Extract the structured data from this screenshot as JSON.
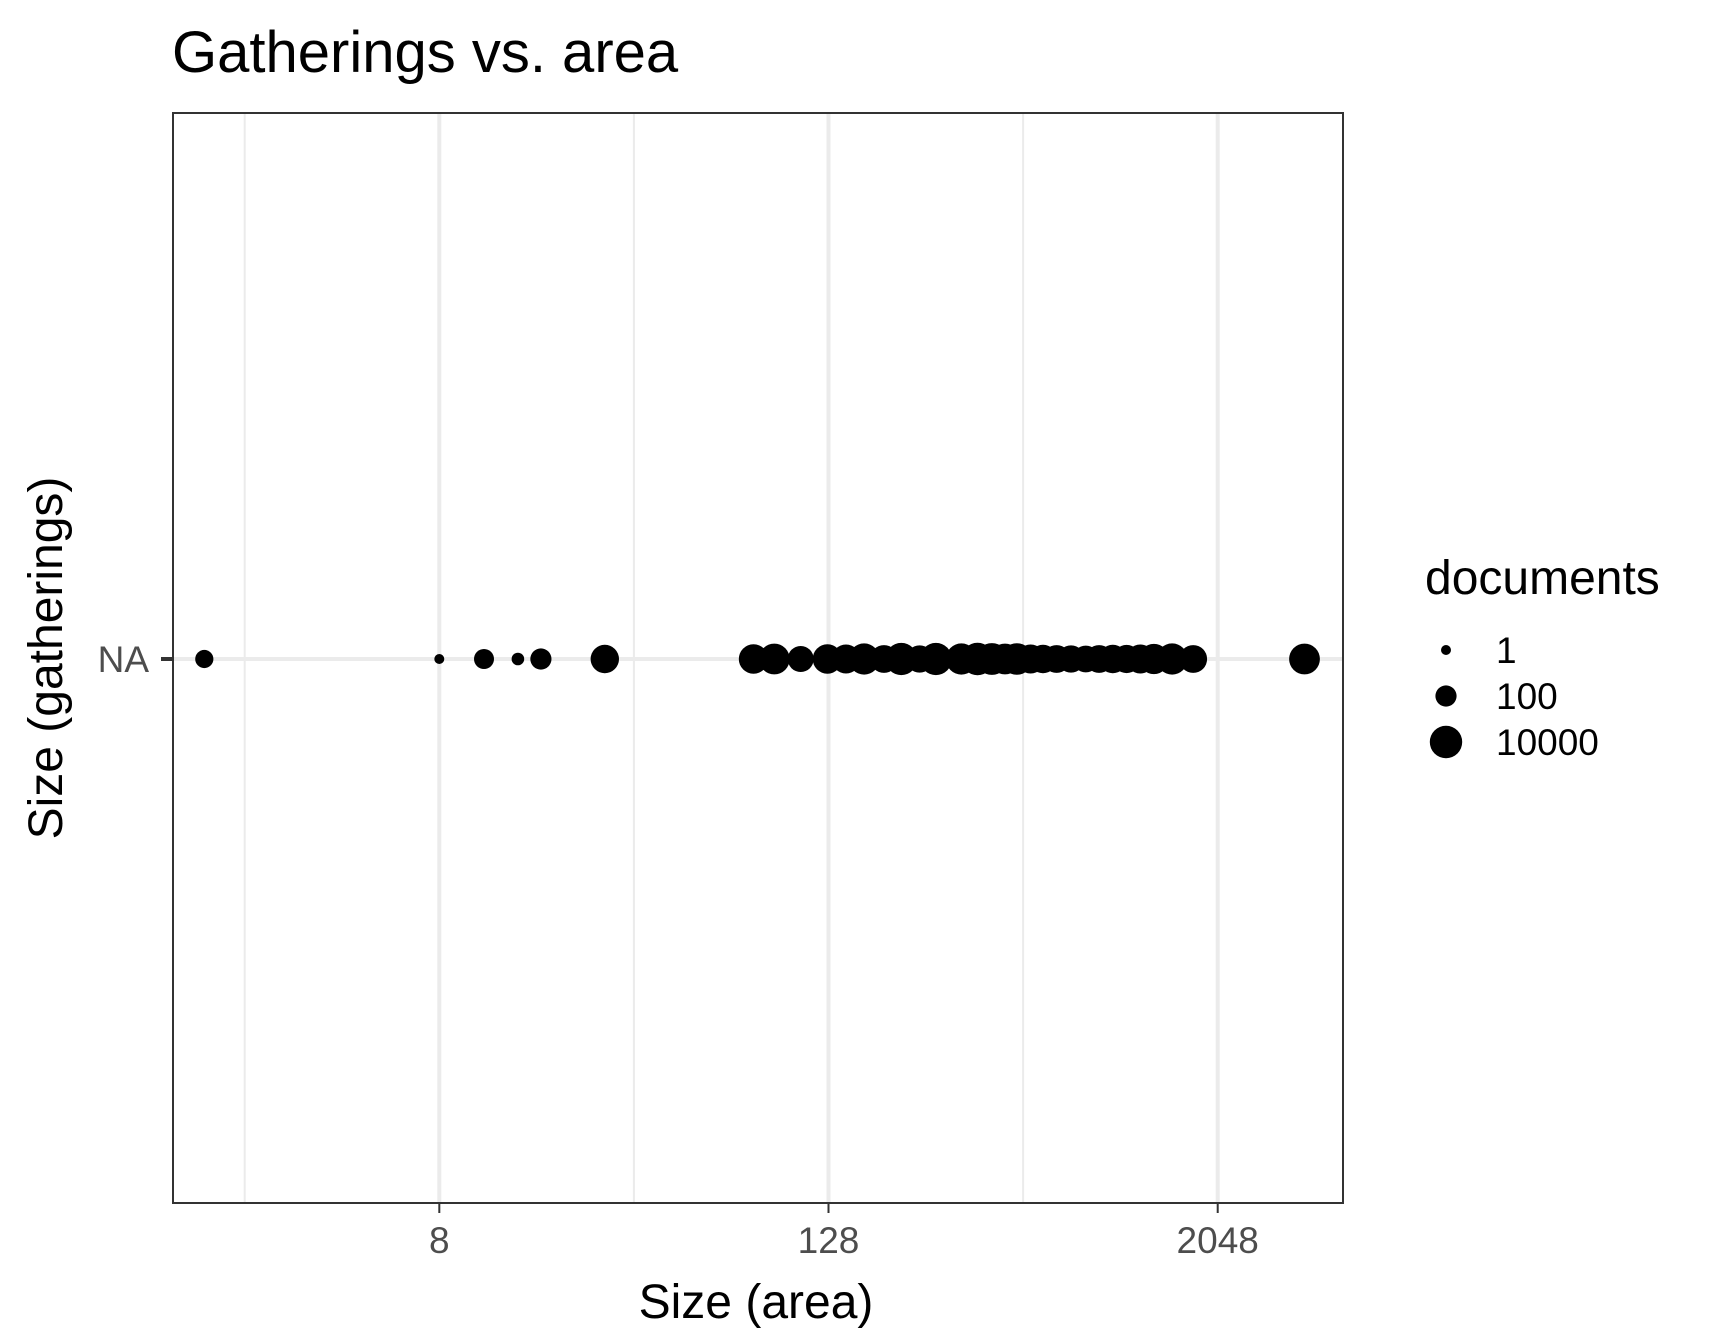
{
  "chart_data": {
    "type": "scatter",
    "title": "Gatherings vs. area",
    "xlabel": "Size (area)",
    "ylabel": "Size (gatherings)",
    "x_scale": "log2",
    "xlim": [
      1.2,
      5000
    ],
    "x_ticks": [
      {
        "value": 8,
        "label": "8"
      },
      {
        "value": 128,
        "label": "128"
      },
      {
        "value": 2048,
        "label": "2048"
      }
    ],
    "y_categories": [
      "NA"
    ],
    "grid": true,
    "legend": {
      "title": "documents",
      "placement": "right",
      "entries": [
        {
          "label": "1",
          "value": 1
        },
        {
          "label": "100",
          "value": 100
        },
        {
          "label": "10000",
          "value": 10000
        }
      ]
    },
    "points": [
      {
        "x": 1.5,
        "y": "NA",
        "documents": 30
      },
      {
        "x": 8,
        "y": "NA",
        "documents": 1
      },
      {
        "x": 11,
        "y": "NA",
        "documents": 60
      },
      {
        "x": 14,
        "y": "NA",
        "documents": 3
      },
      {
        "x": 16.5,
        "y": "NA",
        "documents": 100
      },
      {
        "x": 26,
        "y": "NA",
        "documents": 2000
      },
      {
        "x": 75,
        "y": "NA",
        "documents": 3000
      },
      {
        "x": 87,
        "y": "NA",
        "documents": 5000
      },
      {
        "x": 105,
        "y": "NA",
        "documents": 700
      },
      {
        "x": 127,
        "y": "NA",
        "documents": 3000
      },
      {
        "x": 145,
        "y": "NA",
        "documents": 2500
      },
      {
        "x": 165,
        "y": "NA",
        "documents": 6000
      },
      {
        "x": 190,
        "y": "NA",
        "documents": 1500
      },
      {
        "x": 215,
        "y": "NA",
        "documents": 9000
      },
      {
        "x": 245,
        "y": "NA",
        "documents": 1200
      },
      {
        "x": 275,
        "y": "NA",
        "documents": 9500
      },
      {
        "x": 330,
        "y": "NA",
        "documents": 6000
      },
      {
        "x": 370,
        "y": "NA",
        "documents": 10000
      },
      {
        "x": 410,
        "y": "NA",
        "documents": 8000
      },
      {
        "x": 450,
        "y": "NA",
        "documents": 5000
      },
      {
        "x": 490,
        "y": "NA",
        "documents": 7000
      },
      {
        "x": 540,
        "y": "NA",
        "documents": 2500
      },
      {
        "x": 590,
        "y": "NA",
        "documents": 2000
      },
      {
        "x": 650,
        "y": "NA",
        "documents": 1500
      },
      {
        "x": 720,
        "y": "NA",
        "documents": 1200
      },
      {
        "x": 800,
        "y": "NA",
        "documents": 1000
      },
      {
        "x": 880,
        "y": "NA",
        "documents": 1500
      },
      {
        "x": 970,
        "y": "NA",
        "documents": 2000
      },
      {
        "x": 1070,
        "y": "NA",
        "documents": 1800
      },
      {
        "x": 1180,
        "y": "NA",
        "documents": 2500
      },
      {
        "x": 1300,
        "y": "NA",
        "documents": 4000
      },
      {
        "x": 1480,
        "y": "NA",
        "documents": 6000
      },
      {
        "x": 1720,
        "y": "NA",
        "documents": 1500
      },
      {
        "x": 3800,
        "y": "NA",
        "documents": 5000
      }
    ]
  }
}
